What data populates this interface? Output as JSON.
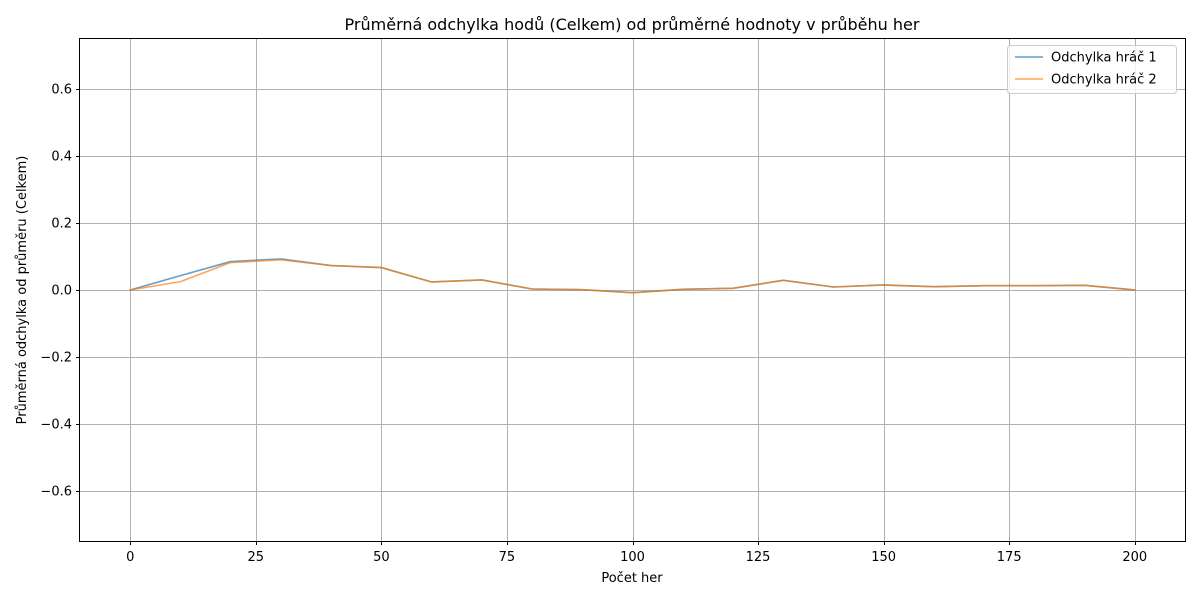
{
  "chart_data": {
    "type": "line",
    "title": "Průměrná odchylka hodů (Celkem) od průměrné hodnoty v průběhu her",
    "xlabel": "Počet her",
    "ylabel": "Průměrná odchylka od průměru (Celkem)",
    "xlim": [
      -10,
      210
    ],
    "ylim": [
      -0.75,
      0.75
    ],
    "xticks": [
      0,
      25,
      50,
      75,
      100,
      125,
      150,
      175,
      200
    ],
    "xtick_labels": [
      "0",
      "25",
      "50",
      "75",
      "100",
      "125",
      "150",
      "175",
      "200"
    ],
    "yticks": [
      -0.6,
      -0.4,
      -0.2,
      0.0,
      0.2,
      0.4,
      0.6
    ],
    "ytick_labels": [
      "−0.6",
      "−0.4",
      "−0.2",
      "0.0",
      "0.2",
      "0.4",
      "0.6"
    ],
    "grid": true,
    "legend_position": "top-right",
    "x": [
      0,
      10,
      20,
      30,
      40,
      50,
      60,
      70,
      80,
      90,
      100,
      110,
      120,
      130,
      140,
      150,
      160,
      170,
      180,
      190,
      200
    ],
    "series": [
      {
        "name": "Odchylka hráč 1",
        "color": "#1f77b4",
        "values": [
          0.0,
          0.043,
          0.085,
          0.093,
          0.073,
          0.067,
          0.024,
          0.03,
          0.003,
          0.001,
          -0.008,
          0.002,
          0.005,
          0.029,
          0.009,
          0.015,
          0.01,
          0.013,
          0.013,
          0.014,
          0.0
        ]
      },
      {
        "name": "Odchylka hráč 2",
        "color": "#ff7f0e",
        "values": [
          0.0,
          0.025,
          0.082,
          0.09,
          0.073,
          0.067,
          0.024,
          0.03,
          0.003,
          0.001,
          -0.008,
          0.002,
          0.005,
          0.029,
          0.009,
          0.015,
          0.01,
          0.013,
          0.013,
          0.014,
          0.0
        ]
      }
    ]
  }
}
